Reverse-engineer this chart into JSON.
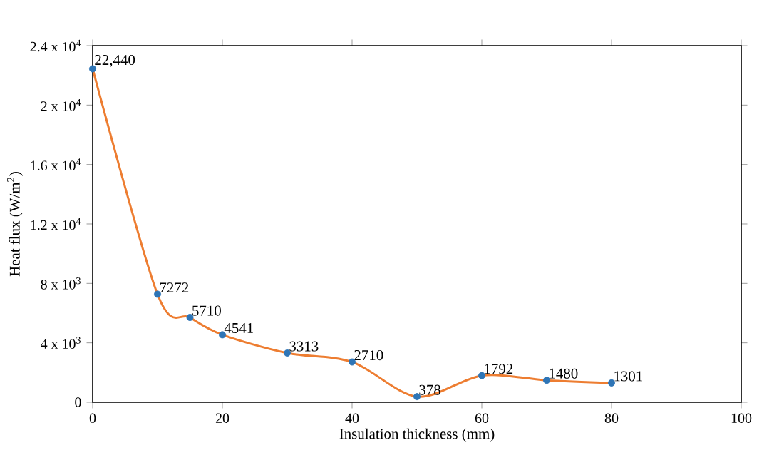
{
  "chart_data": {
    "type": "line",
    "xlabel": "Insulation thickness (mm)",
    "ylabel": "Heat flux (W/m$^{2}$)",
    "x": [
      0,
      10,
      15,
      20,
      30,
      40,
      50,
      60,
      70,
      80
    ],
    "series": [
      {
        "color": "#ed7d31",
        "colors": [
          "#2e75b6",
          "#2e75b6",
          "#2e75b6",
          "#2e75b6",
          "#2e75b6",
          "#2e75b6",
          "#2e75b6",
          "#2e75b6",
          "#2e75b6",
          "#2e75b6"
        ],
        "values": [
          22440,
          7272,
          5710,
          4541,
          3313,
          2710,
          378,
          1792,
          1480,
          1301
        ],
        "value_labels": [
          "22,440",
          "7272",
          "5710",
          "4541",
          "3313",
          "2710",
          "378",
          "1792",
          "1480",
          "1301"
        ]
      }
    ],
    "xlim": [
      0,
      100
    ],
    "xticks": [
      0,
      20,
      40,
      60,
      80,
      100
    ],
    "ylim": [
      0,
      24000
    ],
    "yticks": [
      0,
      {
        "value": 4000,
        "label": "4 x 10$^{3}$"
      },
      {
        "value": 8000,
        "label": "8 x 10$^{3}$"
      },
      {
        "value": 12000,
        "label": "1.2 x 10$^{4}$"
      },
      {
        "value": 16000,
        "label": "1.6 x 10$^{4}$"
      },
      {
        "value": 20000,
        "label": "2 x 10$^{4}$"
      },
      {
        "value": 24000,
        "label": "2.4 x 10$^{4}$"
      }
    ],
    "marker": "circle",
    "line_style": "solid",
    "grid": false
  }
}
